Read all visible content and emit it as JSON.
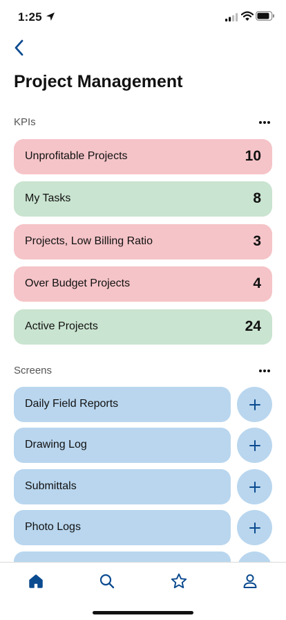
{
  "status_bar": {
    "time": "1:25"
  },
  "page": {
    "title": "Project Management"
  },
  "kpis": {
    "section_title": "KPIs",
    "items": [
      {
        "label": "Unprofitable Projects",
        "value": "10",
        "status": "red"
      },
      {
        "label": "My Tasks",
        "value": "8",
        "status": "green"
      },
      {
        "label": "Projects, Low Billing Ratio",
        "value": "3",
        "status": "red"
      },
      {
        "label": "Over Budget Projects",
        "value": "4",
        "status": "red"
      },
      {
        "label": "Active Projects",
        "value": "24",
        "status": "green"
      }
    ]
  },
  "screens": {
    "section_title": "Screens",
    "items": [
      {
        "label": "Daily Field Reports"
      },
      {
        "label": "Drawing Log"
      },
      {
        "label": "Submittals"
      },
      {
        "label": "Photo Logs"
      },
      {
        "label": ""
      }
    ]
  },
  "tab_bar": {
    "tabs": [
      "home-icon",
      "search-icon",
      "star-icon",
      "person-icon"
    ]
  },
  "colors": {
    "accent": "#0a4a8f",
    "kpi_red": "#f5c4c8",
    "kpi_green": "#c9e4d0",
    "screen_blue": "#b9d6ee"
  }
}
